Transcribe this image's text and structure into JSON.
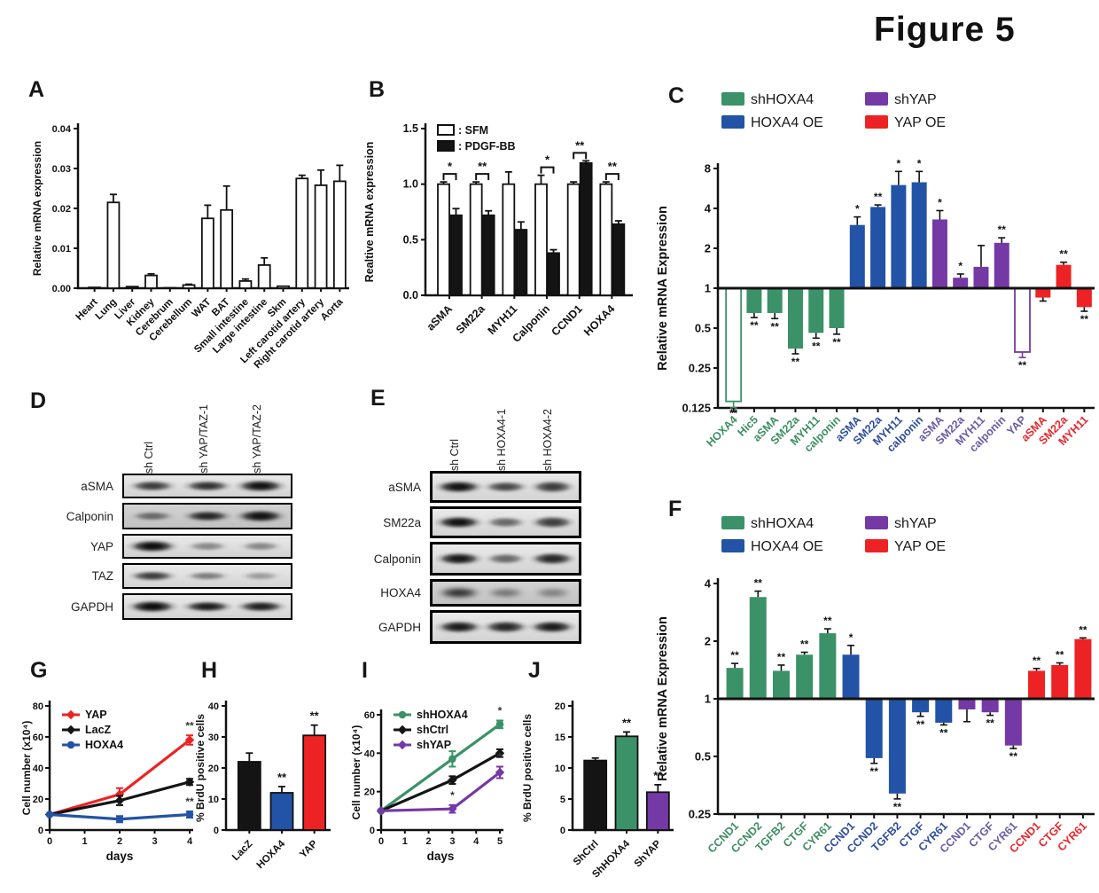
{
  "figure_title": "Figure 5",
  "colors": {
    "green": "#3B9268",
    "blue": "#2253A6",
    "purple": "#7439A4",
    "red": "#ED2224",
    "black": "#141414",
    "white": "#FFFFFF"
  },
  "label_colors": {
    "shHOXA4": "#3E8E63",
    "HOXA4 OE": "#2D4D9E",
    "shYAP": "#6C5BA4",
    "YAP OE": "#E8262C"
  },
  "chart_data": [
    {
      "panel": "A",
      "type": "bar",
      "scale": "linear",
      "ylabel": "Relative mRNA expression",
      "ylim": [
        0,
        0.04
      ],
      "yticks": [
        {
          "v": 0,
          "t": "0.00"
        },
        {
          "v": 0.01,
          "t": "0.01"
        },
        {
          "v": 0.02,
          "t": "0.02"
        },
        {
          "v": 0.03,
          "t": "0.03"
        },
        {
          "v": 0.04,
          "t": "0.04"
        }
      ],
      "categories": [
        "Heart",
        "Lung",
        "Liver",
        "Kidney",
        "Cerebrum",
        "Cerebellum",
        "WAT",
        "BAT",
        "Small intestine",
        "Large intestine",
        "Skm",
        "Left carotid artery",
        "Right carotid artery",
        "Aorta"
      ],
      "values": [
        0.0002,
        0.0215,
        0.0004,
        0.0032,
        0.0001,
        0.0008,
        0.0175,
        0.0196,
        0.0018,
        0.0058,
        0.0005,
        0.0275,
        0.0258,
        0.0268
      ],
      "errors": [
        0,
        0.002,
        0,
        0.0004,
        0,
        0.0002,
        0.0033,
        0.006,
        0.0005,
        0.0018,
        0,
        0.0008,
        0.0038,
        0.004
      ],
      "bar_fill": "white",
      "bar_stroke": "black"
    },
    {
      "panel": "B",
      "type": "bar",
      "scale": "linear",
      "grouped": true,
      "ylabel": "Realtive mRNA expression",
      "ylim": [
        0,
        1.5
      ],
      "yticks": [
        {
          "v": 0,
          "t": "0.0"
        },
        {
          "v": 0.5,
          "t": "0.5"
        },
        {
          "v": 1.0,
          "t": "1.0"
        },
        {
          "v": 1.5,
          "t": "1.5"
        }
      ],
      "categories": [
        "aSMA",
        "SM22a",
        "MYH11",
        "Calponin",
        "CCND1",
        "HOXA4"
      ],
      "legend": [
        {
          "label": ": SFM",
          "fill": "white"
        },
        {
          "label": ": PDGF-BB",
          "fill": "black"
        }
      ],
      "series": [
        {
          "name": "SFM",
          "fill": "white",
          "values": [
            1,
            1,
            1,
            1,
            1,
            1
          ],
          "errors": [
            0.02,
            0.02,
            0.11,
            0.08,
            0.02,
            0.02
          ]
        },
        {
          "name": "PDGF-BB",
          "fill": "black",
          "values": [
            0.72,
            0.72,
            0.59,
            0.38,
            1.19,
            0.64
          ],
          "errors": [
            0.06,
            0.04,
            0.07,
            0.03,
            0.02,
            0.03
          ]
        }
      ],
      "sig": [
        "*",
        "**",
        null,
        "*",
        "**",
        "**"
      ]
    },
    {
      "panel": "C",
      "type": "bar",
      "scale": "log2",
      "ylabel": "Relative mRNA Expression",
      "yticks": [
        8,
        4,
        2,
        1,
        0.5,
        0.25,
        0.125
      ],
      "legend": [
        {
          "label": "shHOXA4",
          "color": "green"
        },
        {
          "label": "HOXA4 OE",
          "color": "blue"
        },
        {
          "label": "shYAP",
          "color": "purple"
        },
        {
          "label": "YAP OE",
          "color": "red"
        }
      ],
      "bars": [
        {
          "gene": "HOXA4",
          "group": "shHOXA4",
          "color": "green",
          "value": 0.14,
          "err": 0.015,
          "sig": "**",
          "open": true
        },
        {
          "gene": "Hic5",
          "group": "shHOXA4",
          "color": "green",
          "value": 0.65,
          "err": 0.05,
          "sig": "**"
        },
        {
          "gene": "aSMA",
          "group": "shHOXA4",
          "color": "green",
          "value": 0.65,
          "err": 0.06,
          "sig": "**"
        },
        {
          "gene": "SM22a",
          "group": "shHOXA4",
          "color": "green",
          "value": 0.35,
          "err": 0.03,
          "sig": "**"
        },
        {
          "gene": "MYH11",
          "group": "shHOXA4",
          "color": "green",
          "value": 0.46,
          "err": 0.04,
          "sig": "**"
        },
        {
          "gene": "calponin",
          "group": "shHOXA4",
          "color": "green",
          "value": 0.5,
          "err": 0.05,
          "sig": "**"
        },
        {
          "gene": "aSMA",
          "group": "HOXA4 OE",
          "color": "blue",
          "value": 3.0,
          "err": 0.45,
          "sig": "*"
        },
        {
          "gene": "SM22a",
          "group": "HOXA4 OE",
          "color": "blue",
          "value": 4.1,
          "err": 0.15,
          "sig": "**"
        },
        {
          "gene": "MYH11",
          "group": "HOXA4 OE",
          "color": "blue",
          "value": 6.0,
          "err": 1.6,
          "sig": "*"
        },
        {
          "gene": "calponin",
          "group": "HOXA4 OE",
          "color": "blue",
          "value": 6.3,
          "err": 1.3,
          "sig": "*"
        },
        {
          "gene": "aSMA",
          "group": "shYAP",
          "color": "purple",
          "value": 3.3,
          "err": 0.55,
          "sig": "*"
        },
        {
          "gene": "SM22a",
          "group": "shYAP",
          "color": "purple",
          "value": 1.2,
          "err": 0.08,
          "sig": "*"
        },
        {
          "gene": "MYH11",
          "group": "shYAP",
          "color": "purple",
          "value": 1.45,
          "err": 0.65,
          "sig": null
        },
        {
          "gene": "calponin",
          "group": "shYAP",
          "color": "purple",
          "value": 2.2,
          "err": 0.2,
          "sig": "**"
        },
        {
          "gene": "YAP",
          "group": "shYAP",
          "color": "purple",
          "value": 0.33,
          "err": 0.03,
          "sig": "**",
          "open": true
        },
        {
          "gene": "aSMA",
          "group": "YAP OE",
          "color": "red",
          "value": 0.85,
          "err": 0.05,
          "sig": null
        },
        {
          "gene": "SM22a",
          "group": "YAP OE",
          "color": "red",
          "value": 1.5,
          "err": 0.07,
          "sig": "**"
        },
        {
          "gene": "MYH11",
          "group": "YAP OE",
          "color": "red",
          "value": 0.72,
          "err": 0.05,
          "sig": "**"
        }
      ]
    },
    {
      "panel": "F",
      "type": "bar",
      "scale": "log2",
      "ylabel": "Relative mRNA Expression",
      "yticks": [
        4,
        2,
        1,
        0.5,
        0.25
      ],
      "legend": [
        {
          "label": "shHOXA4",
          "color": "green"
        },
        {
          "label": "HOXA4 OE",
          "color": "blue"
        },
        {
          "label": "shYAP",
          "color": "purple"
        },
        {
          "label": "YAP OE",
          "color": "red"
        }
      ],
      "bars": [
        {
          "gene": "CCND1",
          "group": "shHOXA4",
          "color": "green",
          "value": 1.45,
          "err": 0.08,
          "sig": "**"
        },
        {
          "gene": "CCND2",
          "group": "shHOXA4",
          "color": "green",
          "value": 3.4,
          "err": 0.25,
          "sig": "**"
        },
        {
          "gene": "TGFB2",
          "group": "shHOXA4",
          "color": "green",
          "value": 1.4,
          "err": 0.1,
          "sig": "**"
        },
        {
          "gene": "CTGF",
          "group": "shHOXA4",
          "color": "green",
          "value": 1.7,
          "err": 0.05,
          "sig": "**"
        },
        {
          "gene": "CYR61",
          "group": "shHOXA4",
          "color": "green",
          "value": 2.2,
          "err": 0.12,
          "sig": "**"
        },
        {
          "gene": "CCND1",
          "group": "HOXA4 OE",
          "color": "blue",
          "value": 1.7,
          "err": 0.2,
          "sig": "*"
        },
        {
          "gene": "CCND2",
          "group": "HOXA4 OE",
          "color": "blue",
          "value": 0.49,
          "err": 0.03,
          "sig": "**"
        },
        {
          "gene": "TGFB2",
          "group": "HOXA4 OE",
          "color": "blue",
          "value": 0.32,
          "err": 0.02,
          "sig": "**"
        },
        {
          "gene": "CTGF",
          "group": "HOXA4 OE",
          "color": "blue",
          "value": 0.85,
          "err": 0.04,
          "sig": "**"
        },
        {
          "gene": "CYR61",
          "group": "HOXA4 OE",
          "color": "blue",
          "value": 0.75,
          "err": 0.02,
          "sig": "**"
        },
        {
          "gene": "CCND1",
          "group": "shYAP",
          "color": "purple",
          "value": 0.88,
          "err": 0.12,
          "sig": null
        },
        {
          "gene": "CTGF",
          "group": "shYAP",
          "color": "purple",
          "value": 0.85,
          "err": 0.03,
          "sig": "**"
        },
        {
          "gene": "CYR61",
          "group": "shYAP",
          "color": "purple",
          "value": 0.57,
          "err": 0.02,
          "sig": "**"
        },
        {
          "gene": "CCND1",
          "group": "YAP OE",
          "color": "red",
          "value": 1.4,
          "err": 0.04,
          "sig": "**"
        },
        {
          "gene": "CTGF",
          "group": "YAP OE",
          "color": "red",
          "value": 1.5,
          "err": 0.04,
          "sig": "**"
        },
        {
          "gene": "CYR61",
          "group": "YAP OE",
          "color": "red",
          "value": 2.05,
          "err": 0.03,
          "sig": "**"
        }
      ]
    },
    {
      "panel": "G",
      "type": "line",
      "ylabel": "Cell number (x10⁴)",
      "xlabel": "days",
      "ylim": [
        0,
        80
      ],
      "xlim": [
        0,
        4
      ],
      "yticks": [
        0,
        20,
        40,
        60,
        80
      ],
      "xticks": [
        0,
        1,
        2,
        3,
        4
      ],
      "series": [
        {
          "name": "YAP",
          "color": "red",
          "marker": "diamond",
          "x": [
            0,
            2,
            4
          ],
          "y": [
            10,
            23,
            58
          ],
          "err": [
            0,
            4,
            3
          ],
          "sig": [
            null,
            null,
            "**"
          ]
        },
        {
          "name": "LacZ",
          "color": "black",
          "marker": "diamond",
          "x": [
            0,
            2,
            4
          ],
          "y": [
            10,
            19,
            31
          ],
          "err": [
            0,
            3,
            2
          ],
          "sig": [
            null,
            null,
            null
          ]
        },
        {
          "name": "HOXA4",
          "color": "blue",
          "marker": "circle",
          "x": [
            0,
            2,
            4
          ],
          "y": [
            10,
            7,
            10
          ],
          "err": [
            0,
            2,
            2
          ],
          "sig": [
            null,
            "*",
            "**"
          ]
        }
      ]
    },
    {
      "panel": "H",
      "type": "bar",
      "scale": "linear",
      "ylabel": "% BrdU positive cells",
      "ylim": [
        0,
        40
      ],
      "yticks": [
        {
          "v": 0,
          "t": "0"
        },
        {
          "v": 10,
          "t": "10"
        },
        {
          "v": 20,
          "t": "20"
        },
        {
          "v": 30,
          "t": "30"
        },
        {
          "v": 40,
          "t": "40"
        }
      ],
      "categories": [
        "LacZ",
        "HOXA4",
        "YAP"
      ],
      "values": [
        22,
        12,
        30.5
      ],
      "errors": [
        2.8,
        2,
        3.3
      ],
      "sig": [
        null,
        "**",
        "**"
      ],
      "bar_colors": [
        "black",
        "blue",
        "red"
      ]
    },
    {
      "panel": "I",
      "type": "line",
      "ylabel": "Cell number (x10⁴)",
      "xlabel": "days",
      "ylim": [
        0,
        60
      ],
      "xlim": [
        0,
        5
      ],
      "yticks": [
        0,
        20,
        40,
        60
      ],
      "xticks": [
        0,
        1,
        2,
        3,
        4,
        5
      ],
      "series": [
        {
          "name": "shHOXA4",
          "color": "green",
          "marker": "circle",
          "x": [
            0,
            3,
            5
          ],
          "y": [
            10,
            37,
            55
          ],
          "err": [
            0,
            4,
            2
          ],
          "sig": [
            null,
            null,
            "*"
          ]
        },
        {
          "name": "shCtrl",
          "color": "black",
          "marker": "diamond",
          "x": [
            0,
            3,
            5
          ],
          "y": [
            10,
            26,
            40
          ],
          "err": [
            0,
            2,
            2
          ],
          "sig": [
            null,
            null,
            null
          ]
        },
        {
          "name": "shYAP",
          "color": "purple",
          "marker": "diamond",
          "x": [
            0,
            3,
            5
          ],
          "y": [
            10,
            11,
            30
          ],
          "err": [
            0,
            2,
            3
          ],
          "sig": [
            null,
            "*",
            "*"
          ]
        }
      ]
    },
    {
      "panel": "J",
      "type": "bar",
      "scale": "linear",
      "ylabel": "% BrdU positive cells",
      "ylim": [
        0,
        20
      ],
      "yticks": [
        {
          "v": 0,
          "t": "0"
        },
        {
          "v": 5,
          "t": "5"
        },
        {
          "v": 10,
          "t": "10"
        },
        {
          "v": 15,
          "t": "15"
        },
        {
          "v": 20,
          "t": "20"
        }
      ],
      "categories": [
        "ShCtrl",
        "ShHOXA4",
        "ShYAP"
      ],
      "values": [
        11.2,
        15.1,
        6.1
      ],
      "errors": [
        0.4,
        0.7,
        1.2
      ],
      "sig": [
        null,
        "**",
        "**"
      ],
      "bar_colors": [
        "black",
        "green",
        "purple"
      ]
    }
  ],
  "blots": [
    {
      "panel": "D",
      "lanes": [
        "sh Ctrl",
        "sh YAP/TAZ-1",
        "sh YAP/TAZ-2"
      ],
      "rows": [
        {
          "target": "aSMA",
          "bands": [
            0.75,
            0.8,
            0.95
          ]
        },
        {
          "target": "Calponin",
          "bands": [
            0.5,
            0.85,
            0.95
          ],
          "dark_bg": true
        },
        {
          "target": "YAP",
          "bands": [
            0.97,
            0.4,
            0.4
          ]
        },
        {
          "target": "TAZ",
          "bands": [
            0.75,
            0.45,
            0.3
          ]
        },
        {
          "target": "GAPDH",
          "bands": [
            0.97,
            0.9,
            0.88
          ]
        }
      ]
    },
    {
      "panel": "E",
      "lanes": [
        "sh Ctrl",
        "sh HOXA4-1",
        "sh HOXA4-2"
      ],
      "rows": [
        {
          "target": "aSMA",
          "bands": [
            0.95,
            0.7,
            0.75
          ]
        },
        {
          "target": "SM22a",
          "bands": [
            0.95,
            0.55,
            0.75
          ]
        },
        {
          "target": "Calponin",
          "bands": [
            0.92,
            0.55,
            0.85
          ]
        },
        {
          "target": "HOXA4",
          "bands": [
            0.8,
            0.45,
            0.4
          ],
          "fuzzy": true,
          "dark_bg": true
        },
        {
          "target": "GAPDH",
          "bands": [
            0.9,
            0.85,
            0.9
          ]
        }
      ]
    }
  ]
}
